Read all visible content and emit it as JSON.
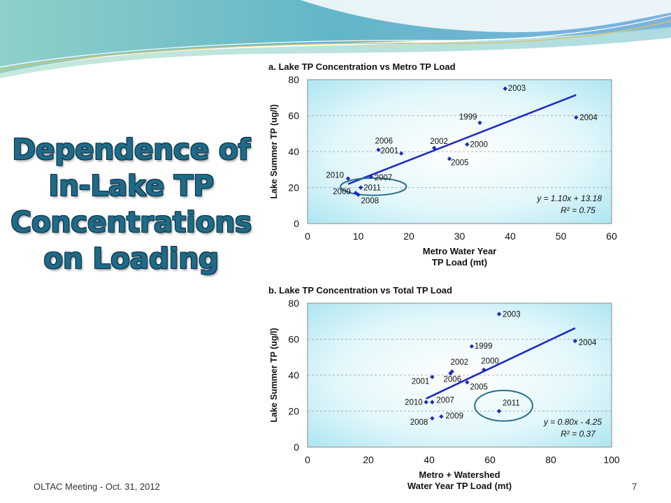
{
  "slide": {
    "title_lines": [
      "Dependence of",
      "In-Lake TP",
      "Concentrations",
      "on Loading"
    ],
    "footer": "OLTAC Meeting - Oct. 31, 2012",
    "page_number": "7",
    "colors": {
      "title": "#1f6a87",
      "point": "#1f2bbf",
      "trend": "#1f2bbf",
      "circle": "#2a6f8a"
    }
  },
  "chart_data": [
    {
      "type": "scatter",
      "title": "a.  Lake TP Concentration vs Metro TP Load",
      "xlabel_lines": [
        "Metro Water Year",
        "TP Load (mt)"
      ],
      "ylabel": "Lake Summer TP (ug/l)",
      "xlim": [
        0,
        60
      ],
      "ylim": [
        0,
        80
      ],
      "xticks": [
        0,
        10,
        20,
        30,
        40,
        50,
        60
      ],
      "yticks": [
        0,
        20,
        40,
        60,
        80
      ],
      "grid": "horizontal dashed",
      "points": [
        {
          "label": "2003",
          "x": 39,
          "y": 75
        },
        {
          "label": "2004",
          "x": 53,
          "y": 59
        },
        {
          "label": "1999",
          "x": 34,
          "y": 56
        },
        {
          "label": "2006",
          "x": 14,
          "y": 41
        },
        {
          "label": "2001",
          "x": 18.5,
          "y": 39
        },
        {
          "label": "2002",
          "x": 25,
          "y": 42
        },
        {
          "label": "2000",
          "x": 31.5,
          "y": 44
        },
        {
          "label": "2005",
          "x": 28,
          "y": 36
        },
        {
          "label": "2010",
          "x": 8,
          "y": 25
        },
        {
          "label": "2007",
          "x": 12.5,
          "y": 26
        },
        {
          "label": "2011",
          "x": 10.5,
          "y": 20
        },
        {
          "label": "2009",
          "x": 9.5,
          "y": 17
        },
        {
          "label": "2008",
          "x": 10,
          "y": 16
        }
      ],
      "trendline": {
        "slope": 1.1,
        "intercept": 13.18,
        "x_range": [
          8,
          53
        ]
      },
      "equation": "y = 1.10x + 13.18",
      "r_squared": "R² = 0.75",
      "highlight": {
        "label": "2011",
        "cx": 13,
        "cy": 20.5,
        "rx": 6.5,
        "ry": 4.8
      }
    },
    {
      "type": "scatter",
      "title": "b.  Lake TP Concentration vs Total TP Load",
      "xlabel_lines": [
        "Metro + Watershed",
        "Water Year TP Load (mt)"
      ],
      "ylabel": "Lake Summer TP (ug/l)",
      "xlim": [
        0,
        100
      ],
      "ylim": [
        0,
        80
      ],
      "xticks": [
        0,
        20,
        40,
        60,
        80,
        100
      ],
      "yticks": [
        0,
        20,
        40,
        60,
        80
      ],
      "grid": "horizontal dashed",
      "points": [
        {
          "label": "2003",
          "x": 63,
          "y": 74
        },
        {
          "label": "2004",
          "x": 88,
          "y": 59
        },
        {
          "label": "1999",
          "x": 54,
          "y": 56
        },
        {
          "label": "2002",
          "x": 47.5,
          "y": 42
        },
        {
          "label": "2000",
          "x": 58,
          "y": 43
        },
        {
          "label": "2001",
          "x": 41,
          "y": 39
        },
        {
          "label": "2006",
          "x": 47,
          "y": 41
        },
        {
          "label": "2005",
          "x": 52.5,
          "y": 36
        },
        {
          "label": "2010",
          "x": 39,
          "y": 25
        },
        {
          "label": "2007",
          "x": 41,
          "y": 25
        },
        {
          "label": "2011",
          "x": 63,
          "y": 20
        },
        {
          "label": "2009",
          "x": 44,
          "y": 17
        },
        {
          "label": "2008",
          "x": 41,
          "y": 16
        }
      ],
      "trendline": {
        "slope": 0.8,
        "intercept": -4.25,
        "x_range": [
          39,
          88
        ]
      },
      "equation": "y = 0.80x - 4.25",
      "r_squared": "R² = 0.37",
      "highlight": {
        "label": "2011",
        "cx": 64.5,
        "cy": 23,
        "rx": 9.5,
        "ry": 8.5
      }
    }
  ]
}
